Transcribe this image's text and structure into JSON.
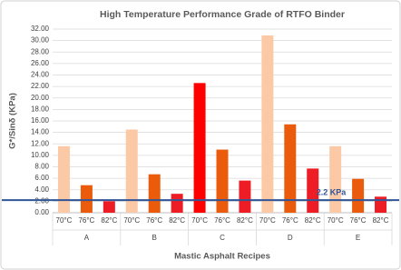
{
  "chart_data": {
    "type": "grouped-bar",
    "title": "High Temperature Performance Grade of RTFO Binder",
    "y_label": "G*/Sinδ (KPa)",
    "x_label": "Mastic Asphalt Recipes",
    "groups": [
      "A",
      "B",
      "C",
      "D",
      "E"
    ],
    "series": [
      {
        "name": "70°C",
        "colors": [
          "#fcc9a6",
          "#fcc9a6",
          "#ff0000",
          "#fcc9a6",
          "#fcc9a6"
        ],
        "values": [
          11.6,
          14.5,
          22.6,
          30.9,
          11.6
        ]
      },
      {
        "name": "76°C",
        "colors": [
          "#ea5b0c",
          "#ea5b0c",
          "#ea5b0c",
          "#ea5b0c",
          "#ea5b0c"
        ],
        "values": [
          4.8,
          6.7,
          11.0,
          15.4,
          5.9
        ]
      },
      {
        "name": "82°C",
        "colors": [
          "#ee1c25",
          "#ee1c25",
          "#ee1c25",
          "#ee1c25",
          "#ee1c25"
        ],
        "values": [
          2.0,
          3.3,
          5.6,
          7.7,
          2.8
        ]
      }
    ],
    "reference_line": {
      "value": 2.2,
      "label": "2.2 KPa",
      "color": "#2f5597"
    },
    "ylim": [
      0,
      32
    ],
    "yticks": [
      {
        "value": 0,
        "label": "0.00"
      },
      {
        "value": 2,
        "label": "2.00"
      },
      {
        "value": 4,
        "label": "4.00"
      },
      {
        "value": 6,
        "label": "6.00"
      },
      {
        "value": 8,
        "label": "8.00"
      },
      {
        "value": 10,
        "label": "10.00"
      },
      {
        "value": 12,
        "label": "12.00"
      },
      {
        "value": 14,
        "label": "14.00"
      },
      {
        "value": 16,
        "label": "16.00"
      },
      {
        "value": 18,
        "label": "18.00"
      },
      {
        "value": 20,
        "label": "20.00"
      },
      {
        "value": 22,
        "label": "22.00"
      },
      {
        "value": 24,
        "label": "24.00"
      },
      {
        "value": 26,
        "label": "26.00"
      },
      {
        "value": 28,
        "label": "28.00"
      },
      {
        "value": 30,
        "label": "30.00"
      },
      {
        "value": 32,
        "label": "32.00"
      }
    ],
    "grid": true
  }
}
